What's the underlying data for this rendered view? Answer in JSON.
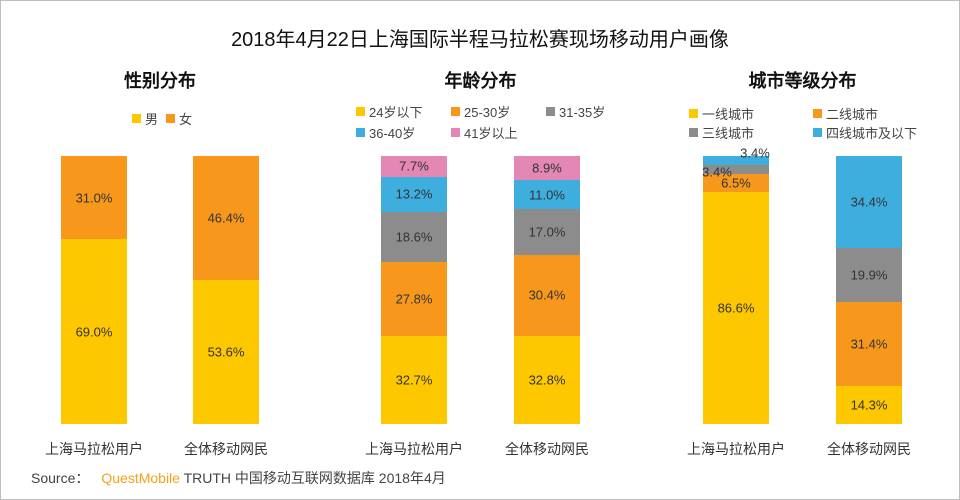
{
  "title": "2018年4月22日上海国际半程马拉松赛现场移动用户画像",
  "source": {
    "label": "Source：",
    "brand": "QuestMobile",
    "text": "TRUTH 中国移动互联网数据库 2018年4月"
  },
  "chart_data": [
    {
      "type": "bar",
      "stacked": true,
      "title": "性别分布",
      "categories": [
        "上海马拉松用户",
        "全体移动网民"
      ],
      "ylim": [
        0,
        100
      ],
      "series": [
        {
          "name": "男",
          "color": "#fdc800",
          "values": [
            69.0,
            53.6
          ]
        },
        {
          "name": "女",
          "color": "#f7981d",
          "values": [
            31.0,
            46.4
          ]
        }
      ]
    },
    {
      "type": "bar",
      "stacked": true,
      "title": "年龄分布",
      "categories": [
        "上海马拉松用户",
        "全体移动网民"
      ],
      "ylim": [
        0,
        100
      ],
      "series": [
        {
          "name": "24岁以下",
          "color": "#fdc800",
          "values": [
            32.7,
            32.8
          ]
        },
        {
          "name": "25-30岁",
          "color": "#f7981d",
          "values": [
            27.8,
            30.4
          ]
        },
        {
          "name": "31-35岁",
          "color": "#8c8c8c",
          "values": [
            18.6,
            17.0
          ]
        },
        {
          "name": "36-40岁",
          "color": "#3eaedf",
          "values": [
            13.2,
            11.0
          ]
        },
        {
          "name": "41岁以上",
          "color": "#e388b4",
          "values": [
            7.7,
            8.9
          ]
        }
      ]
    },
    {
      "type": "bar",
      "stacked": true,
      "title": "城市等级分布",
      "categories": [
        "上海马拉松用户",
        "全体移动网民"
      ],
      "ylim": [
        0,
        100
      ],
      "series": [
        {
          "name": "一线城市",
          "color": "#fdc800",
          "values": [
            86.6,
            14.3
          ]
        },
        {
          "name": "二线城市",
          "color": "#f7981d",
          "values": [
            6.5,
            31.4
          ]
        },
        {
          "name": "三线城市",
          "color": "#8c8c8c",
          "values": [
            3.4,
            19.9
          ]
        },
        {
          "name": "四线城市及以下",
          "color": "#3eaedf",
          "values": [
            3.4,
            34.4
          ]
        }
      ]
    }
  ]
}
